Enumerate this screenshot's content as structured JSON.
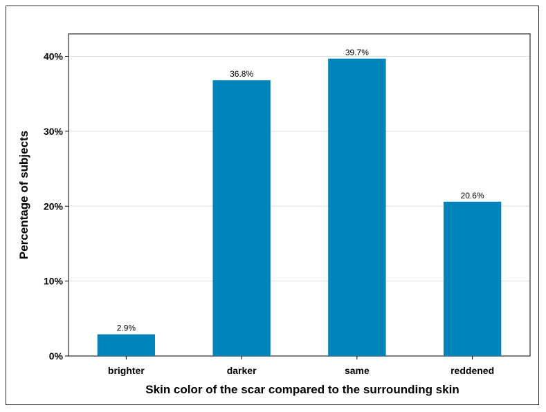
{
  "chart_data": {
    "type": "bar",
    "title": "",
    "xlabel": "Skin color of the scar compared to the surrounding skin",
    "ylabel": "Percentage of subjects",
    "categories": [
      "brighter",
      "darker",
      "same",
      "reddened"
    ],
    "values": [
      2.9,
      36.8,
      39.7,
      20.6
    ],
    "value_labels": [
      "2.9%",
      "36.8%",
      "39.7%",
      "20.6%"
    ],
    "ylim": [
      0,
      43
    ],
    "yticks": [
      0,
      10,
      20,
      30,
      40
    ],
    "ytick_labels": [
      "0%",
      "10%",
      "20%",
      "30%",
      "40%"
    ],
    "grid": true,
    "legend": "none",
    "bar_color": "#0083B8",
    "grid_color": "#DDDDDD"
  }
}
